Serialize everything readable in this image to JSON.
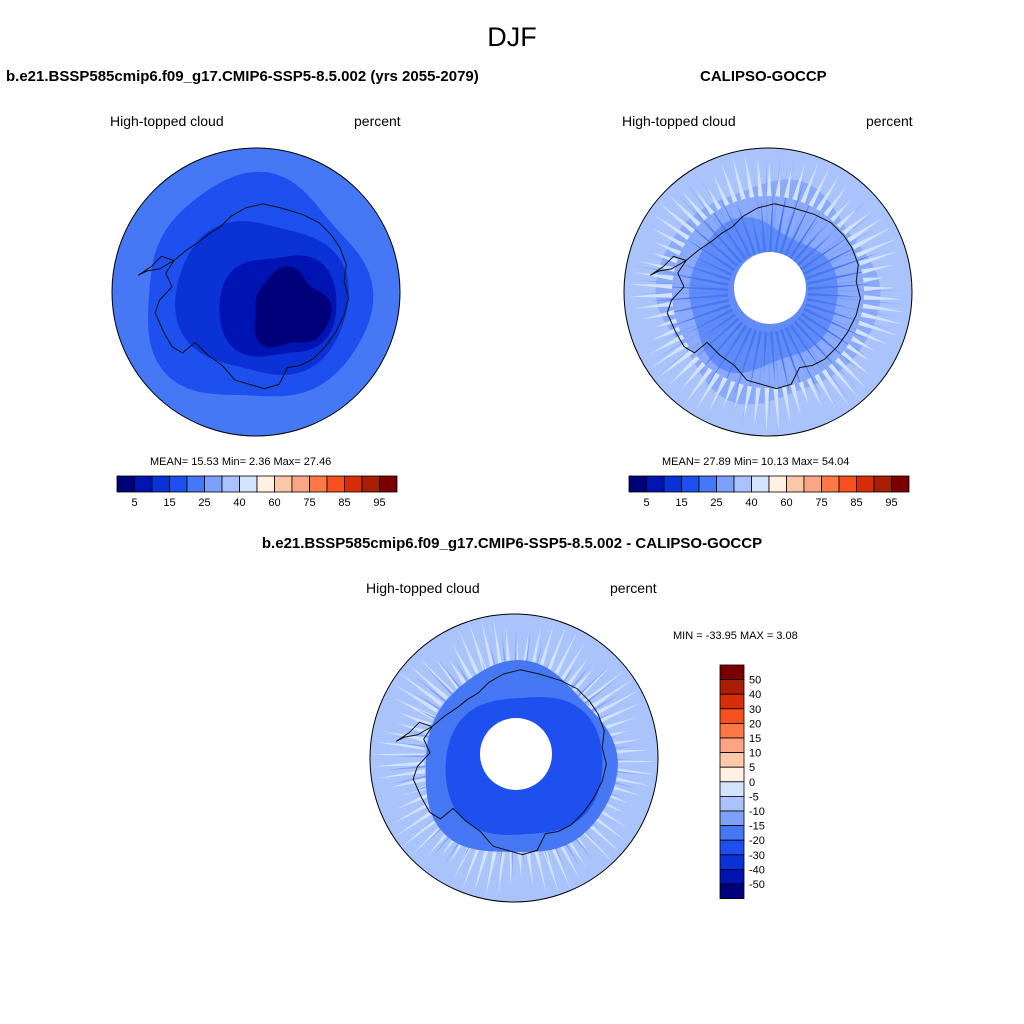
{
  "chart_data": {
    "type": "heatmap",
    "title": "DJF",
    "field": "High-topped cloud",
    "units": "percent",
    "projection": "South polar stereographic",
    "panels": [
      {
        "id": "model",
        "title": "b.e21.BSSP585cmip6.f09_g17.CMIP6-SSP5-8.5.002 (yrs 2055-2079)",
        "left_label": "High-topped cloud",
        "right_label": "percent",
        "stats": {
          "mean": "15.53",
          "min": "2.36",
          "max": "27.46"
        },
        "stats_text": "MEAN=  15.53  Min=   2.36  Max=  27.46",
        "has_data_gap": false
      },
      {
        "id": "obs",
        "title": "CALIPSO-GOCCP",
        "left_label": "High-topped cloud",
        "right_label": "percent",
        "stats": {
          "mean": "27.89",
          "min": "10.13",
          "max": "54.04"
        },
        "stats_text": "MEAN=  27.89  Min=  10.13  Max=  54.04",
        "has_data_gap": true
      },
      {
        "id": "diff",
        "title": "b.e21.BSSP585cmip6.f09_g17.CMIP6-SSP5-8.5.002 - CALIPSO-GOCCP",
        "left_label": "High-topped cloud",
        "right_label": "percent",
        "stats_text": "MIN = -33.95 MAX =   3.08",
        "has_data_gap": true
      }
    ],
    "colorbar_abs": {
      "orientation": "horizontal",
      "colors": [
        "#00007a",
        "#0014b4",
        "#0a32d6",
        "#1e50f0",
        "#4678f5",
        "#7da0fa",
        "#aac4fb",
        "#d3e3fc",
        "#fff0e1",
        "#fcc8aa",
        "#fca582",
        "#fc7846",
        "#f5501e",
        "#d72d0a",
        "#aa1e05",
        "#7a0000"
      ],
      "tick_labels": [
        "5",
        "15",
        "25",
        "40",
        "60",
        "75",
        "85",
        "95"
      ]
    },
    "colorbar_diff": {
      "orientation": "vertical",
      "colors_top_to_bottom": [
        "#7a0000",
        "#aa1e05",
        "#d72d0a",
        "#f5501e",
        "#fc7846",
        "#fca582",
        "#fcc8aa",
        "#fff0e1",
        "#d3e3fc",
        "#aac4fb",
        "#7da0fa",
        "#4678f5",
        "#1e50f0",
        "#0a32d6",
        "#0014b4",
        "#00007a"
      ],
      "tick_labels": [
        "50",
        "40",
        "30",
        "20",
        "15",
        "10",
        "5",
        "0",
        "-5",
        "-10",
        "-15",
        "-20",
        "-30",
        "-40",
        "-50"
      ]
    }
  }
}
